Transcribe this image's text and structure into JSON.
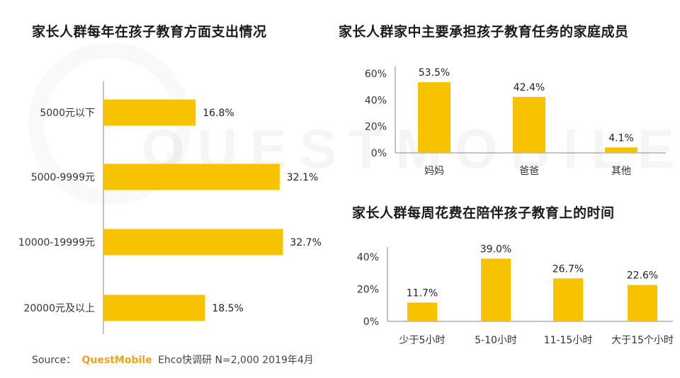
{
  "watermark": "QUESTMOBILE",
  "source": {
    "label": "Source：",
    "brand": "QuestMobile",
    "text": "Ehco快调研 N=2,000 2019年4月"
  },
  "colors": {
    "bar": "#f7c200",
    "axis": "#888888",
    "brand": "#f0a21b"
  },
  "chart_data": [
    {
      "type": "bar",
      "orientation": "horizontal",
      "title": "家长人群每年在孩子教育方面支出情况",
      "categories": [
        "5000元以下",
        "5000-9999元",
        "10000-19999元",
        "20000元及以上"
      ],
      "values": [
        16.8,
        32.1,
        32.7,
        18.5
      ],
      "labels": [
        "16.8%",
        "32.1%",
        "32.7%",
        "18.5%"
      ],
      "xlim": [
        0,
        45
      ],
      "grid": false,
      "legend": "none"
    },
    {
      "type": "bar",
      "title": "家长人群家中主要承担孩子教育任务的家庭成员",
      "categories": [
        "妈妈",
        "爸爸",
        "其他"
      ],
      "values": [
        53.5,
        42.4,
        4.1
      ],
      "labels": [
        "53.5%",
        "42.4%",
        "4.1%"
      ],
      "yticks": [
        "0%",
        "20%",
        "40%",
        "60%"
      ],
      "ylim": [
        0,
        60
      ],
      "grid": false,
      "legend": "none"
    },
    {
      "type": "bar",
      "title": "家长人群每周花费在陪伴孩子教育上的时间",
      "categories": [
        "少于5小时",
        "5-10小时",
        "11-15小时",
        "大于15个小时"
      ],
      "values": [
        11.7,
        39.0,
        26.7,
        22.6
      ],
      "labels": [
        "11.7%",
        "39.0%",
        "26.7%",
        "22.6%"
      ],
      "yticks": [
        "0%",
        "20%",
        "40%"
      ],
      "ylim": [
        0,
        40
      ],
      "grid": false,
      "legend": "none"
    }
  ]
}
